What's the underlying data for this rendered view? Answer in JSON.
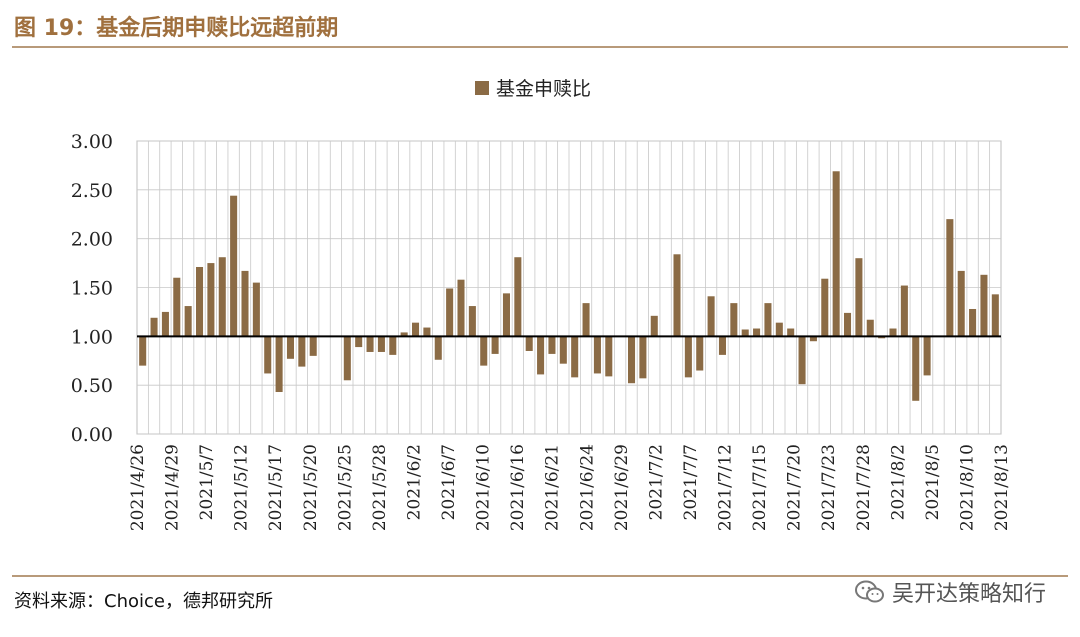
{
  "header": {
    "title": "图 19：基金后期申赎比远超前期"
  },
  "footer": {
    "source": "资料来源：Choice，德邦研究所",
    "watermark": "吴开达策略知行",
    "watermark_icon": "wechat-icon"
  },
  "colors": {
    "bar": "#8b6b45",
    "title": "#a0703e",
    "rule": "#b89a7a",
    "grid": "#c8c8c8"
  },
  "chart_data": {
    "type": "bar",
    "title": "",
    "xlabel": "",
    "ylabel": "",
    "ylim": [
      0,
      3
    ],
    "yticks": [
      "0.00",
      "0.50",
      "1.00",
      "1.50",
      "2.00",
      "2.50",
      "3.00"
    ],
    "baseline": 1.0,
    "legend": "top-center",
    "grid": true,
    "tick_labels": [
      "2021/4/26",
      "2021/4/29",
      "2021/5/7",
      "2021/5/12",
      "2021/5/17",
      "2021/5/20",
      "2021/5/25",
      "2021/5/28",
      "2021/6/2",
      "2021/6/7",
      "2021/6/10",
      "2021/6/16",
      "2021/6/21",
      "2021/6/24",
      "2021/6/29",
      "2021/7/2",
      "2021/7/7",
      "2021/7/12",
      "2021/7/15",
      "2021/7/20",
      "2021/7/23",
      "2021/7/28",
      "2021/8/2",
      "2021/8/5",
      "2021/8/10",
      "2021/8/13"
    ],
    "series": [
      {
        "name": "基金申赎比",
        "values": [
          0.7,
          1.19,
          1.25,
          1.6,
          1.31,
          1.71,
          1.75,
          1.81,
          2.44,
          1.67,
          1.55,
          0.62,
          0.43,
          0.77,
          0.69,
          0.8,
          1.0,
          1.0,
          0.55,
          0.89,
          0.84,
          0.84,
          0.81,
          1.04,
          1.14,
          1.09,
          0.76,
          1.49,
          1.58,
          1.31,
          0.7,
          0.82,
          1.44,
          1.81,
          0.85,
          0.61,
          0.82,
          0.72,
          0.58,
          1.34,
          0.62,
          0.59,
          1.0,
          0.52,
          0.57,
          1.21,
          1.0,
          1.84,
          0.58,
          0.65,
          1.41,
          0.81,
          1.34,
          1.07,
          1.08,
          1.34,
          1.14,
          1.08,
          0.51,
          0.95,
          1.59,
          2.69,
          1.24,
          1.8,
          1.17,
          0.98,
          1.08,
          1.52,
          0.34,
          0.6,
          1.0,
          2.2,
          1.67,
          1.28,
          1.63,
          1.43
        ]
      }
    ]
  }
}
